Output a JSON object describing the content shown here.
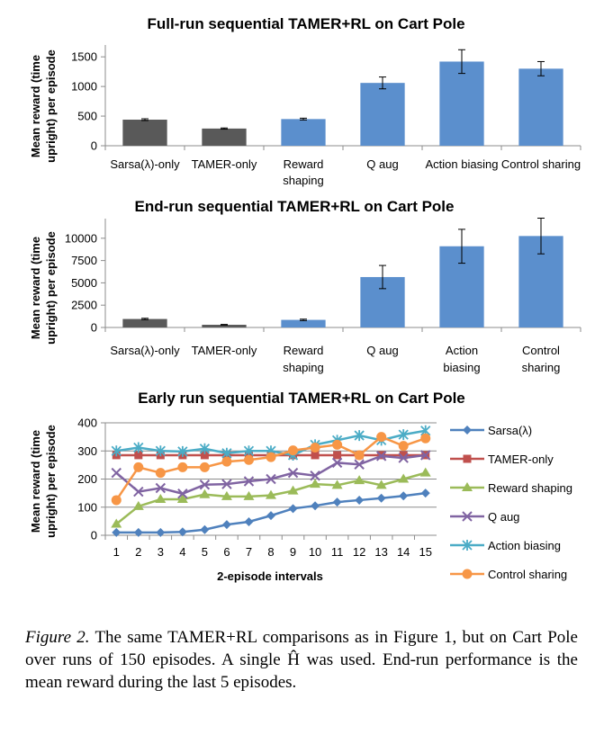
{
  "chart_data": [
    {
      "type": "bar",
      "title": "Full-run sequential TAMER+RL on Cart Pole",
      "ylabel": "Mean reward (time upright) per episode",
      "categories": [
        "Sarsa(λ)-only",
        "TAMER-only",
        "Reward shaping",
        "Q aug",
        "Action biasing",
        "Control sharing"
      ],
      "values": [
        440,
        290,
        450,
        1060,
        1420,
        1300
      ],
      "errors": [
        15,
        10,
        15,
        100,
        200,
        120
      ],
      "colors": [
        "#595959",
        "#595959",
        "#5b8fcd",
        "#5b8fcd",
        "#5b8fcd",
        "#5b8fcd"
      ],
      "ylim": [
        0,
        1700
      ],
      "yticks": [
        0,
        500,
        1000,
        1500
      ]
    },
    {
      "type": "bar",
      "title": "End-run sequential TAMER+RL on Cart Pole",
      "ylabel": "Mean reward (time upright) per episode",
      "categories": [
        "Sarsa(λ)-only",
        "TAMER-only",
        "Reward shaping",
        "Q aug",
        "Action biasing",
        "Control sharing"
      ],
      "values": [
        950,
        300,
        850,
        5650,
        9100,
        10250
      ],
      "errors": [
        80,
        40,
        80,
        1300,
        1900,
        2000
      ],
      "colors": [
        "#595959",
        "#595959",
        "#5b8fcd",
        "#5b8fcd",
        "#5b8fcd",
        "#5b8fcd"
      ],
      "ylim": [
        0,
        12200
      ],
      "yticks": [
        0,
        2500,
        5000,
        7500,
        10000
      ]
    },
    {
      "type": "line",
      "title": "Early run sequential TAMER+RL on Cart Pole",
      "xlabel": "2-episode intervals",
      "ylabel": "Mean reward (time upright) per episode",
      "x": [
        1,
        2,
        3,
        4,
        5,
        6,
        7,
        8,
        9,
        10,
        11,
        12,
        13,
        14,
        15
      ],
      "ylim": [
        0,
        400
      ],
      "yticks": [
        0,
        100,
        200,
        300,
        400
      ],
      "legend_position": "right",
      "series": [
        {
          "name": "Sarsa(λ)",
          "color": "#4f81bd",
          "marker": "diamond",
          "values": [
            10,
            10,
            10,
            12,
            20,
            38,
            48,
            70,
            95,
            105,
            118,
            125,
            132,
            140,
            150
          ]
        },
        {
          "name": "TAMER-only",
          "color": "#c0504d",
          "marker": "square",
          "values": [
            285,
            285,
            285,
            285,
            285,
            285,
            285,
            285,
            285,
            285,
            285,
            285,
            285,
            285,
            285
          ]
        },
        {
          "name": "Reward shaping",
          "color": "#9bbb59",
          "marker": "triangle",
          "values": [
            40,
            103,
            128,
            128,
            145,
            138,
            138,
            142,
            158,
            182,
            178,
            195,
            178,
            200,
            222
          ]
        },
        {
          "name": "Q aug",
          "color": "#8064a2",
          "marker": "x",
          "values": [
            222,
            155,
            168,
            148,
            180,
            182,
            192,
            200,
            222,
            212,
            258,
            252,
            282,
            275,
            285
          ]
        },
        {
          "name": "Action biasing",
          "color": "#4bacc6",
          "marker": "star",
          "values": [
            300,
            312,
            300,
            298,
            308,
            292,
            300,
            300,
            285,
            322,
            338,
            355,
            338,
            358,
            372
          ]
        },
        {
          "name": "Control sharing",
          "color": "#f79646",
          "marker": "circle",
          "values": [
            125,
            242,
            222,
            242,
            242,
            262,
            268,
            278,
            302,
            312,
            322,
            285,
            350,
            318,
            345
          ]
        }
      ]
    }
  ],
  "caption": {
    "label": "Figure 2.",
    "text": "The same TAMER+RL comparisons as in Figure 1, but on Cart Pole over runs of 150 episodes. A single Ĥ was used. End-run performance is the mean reward during the last 5 episodes."
  }
}
